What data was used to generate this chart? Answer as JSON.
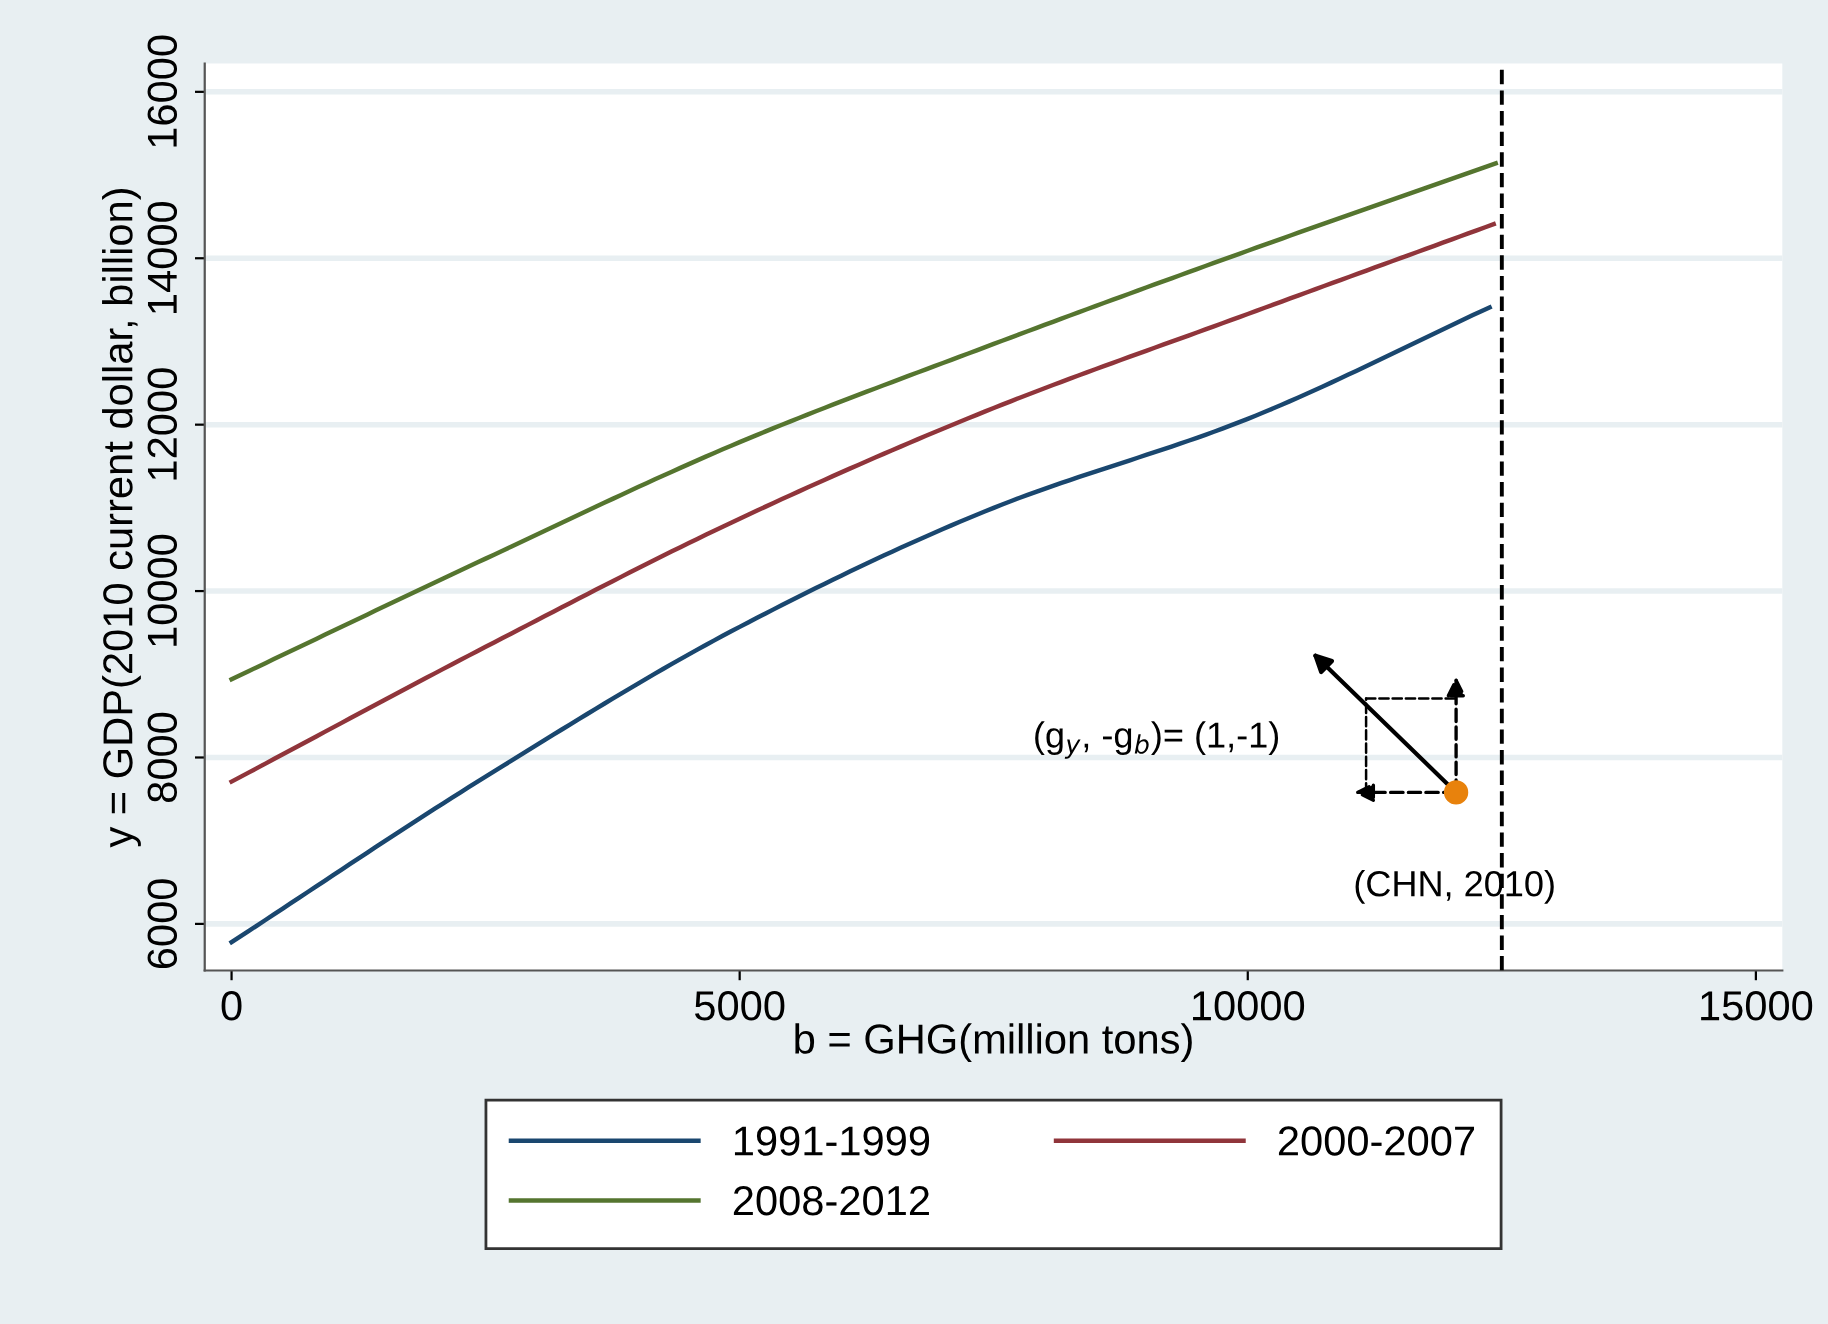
{
  "chart_data": {
    "type": "line",
    "xlabel": "b = GHG(million tons)",
    "ylabel": "y = GDP(2010 current dollar, billion)",
    "xlim": [
      -264,
      15260
    ],
    "ylim": [
      5440,
      16340
    ],
    "xticks": [
      0,
      5000,
      10000,
      15000
    ],
    "yticks": [
      6000,
      8000,
      10000,
      12000,
      14000,
      16000
    ],
    "grid": "y",
    "legend": "bottom",
    "marker": "none",
    "line_style": "solid",
    "series": [
      {
        "name": "1991-1999",
        "color": "#1a476f",
        "x": [
          0,
          2500,
          5000,
          7500,
          10000,
          12380
        ],
        "values": [
          5780,
          7770,
          9570,
          11000,
          12070,
          13410
        ]
      },
      {
        "name": "2000-2007",
        "color": "#90353b",
        "x": [
          0,
          2500,
          5000,
          7500,
          10000,
          12420
        ],
        "values": [
          7710,
          9330,
          10870,
          12200,
          13330,
          14410
        ]
      },
      {
        "name": "2008-2012",
        "color": "#55752f",
        "x": [
          0,
          2500,
          5000,
          7500,
          10000,
          12440
        ],
        "values": [
          8940,
          10390,
          11790,
          12970,
          14090,
          15140
        ]
      },
      {
        "type": "scatter",
        "color": "#e8820c",
        "marker": "circle",
        "x": [
          12050
        ],
        "values": [
          7580
        ]
      }
    ],
    "ref_lines": [
      {
        "axis": "x",
        "value": 12500,
        "color": "#000000",
        "line_style": "dashed"
      }
    ],
    "annotations": [
      "(g$_{y}$, -g$_{b}$)= (1,-1)",
      {
        "text": "(CHN, 2010)",
        "x": 12050,
        "y": 7580
      }
    ]
  }
}
